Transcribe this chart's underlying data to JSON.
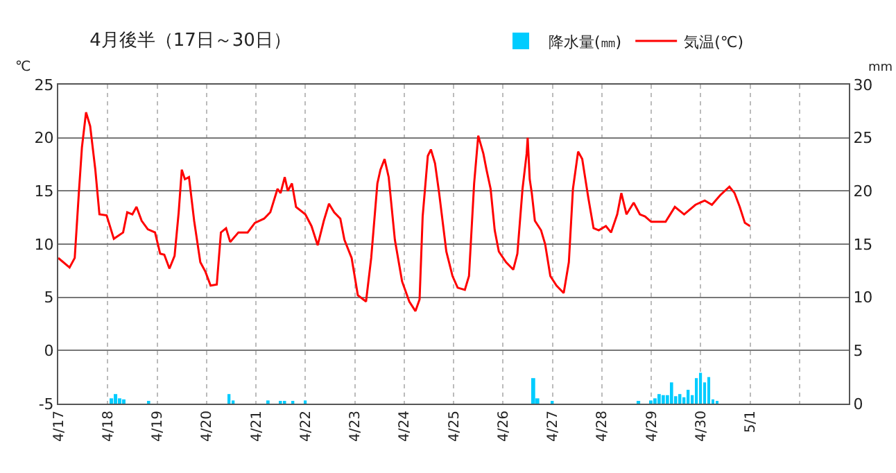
{
  "chart_data": {
    "type": "line",
    "title": "4月後半（17日～30日）",
    "ylabel": "℃",
    "y2label": "mm",
    "xlim": [
      "--04-17",
      "--05-03"
    ],
    "xticks": [
      {
        "value": "--04-17",
        "label": "4/17"
      },
      {
        "value": "--04-18",
        "label": "4/18"
      },
      {
        "value": "--04-19",
        "label": "4/19"
      },
      {
        "value": "--04-20",
        "label": "4/20"
      },
      {
        "value": "--04-21",
        "label": "4/21"
      },
      {
        "value": "--04-22",
        "label": "4/22"
      },
      {
        "value": "--04-23",
        "label": "4/23"
      },
      {
        "value": "--04-24",
        "label": "4/24"
      },
      {
        "value": "--04-25",
        "label": "4/25"
      },
      {
        "value": "--04-26",
        "label": "4/26"
      },
      {
        "value": "--04-27",
        "label": "4/27"
      },
      {
        "value": "--04-28",
        "label": "4/28"
      },
      {
        "value": "--04-29",
        "label": "4/29"
      },
      {
        "value": "--04-30",
        "label": "4/30"
      },
      {
        "value": "--05-01",
        "label": "5/1"
      },
      {
        "value": "--05-02",
        "label": null
      }
    ],
    "ylim": [
      -5,
      25
    ],
    "yticks": [
      -5,
      0,
      5,
      10,
      15,
      20,
      25
    ],
    "y2lim": [
      0,
      30
    ],
    "y2ticks": [
      0,
      5,
      10,
      15,
      20,
      25,
      30
    ],
    "grid": true,
    "legend": "top",
    "series": [
      {
        "name": "降水量(㎜)",
        "type": "bar",
        "axis": "y2",
        "color": "#00ccff",
        "x": [
          "--04-18T02:00",
          "--04-18T04:00",
          "--04-18T06:00",
          "--04-18T08:00",
          "--04-18T20:00",
          "--04-20T11:00",
          "--04-20T13:00",
          "--04-21T06:00",
          "--04-21T12:00",
          "--04-21T14:00",
          "--04-21T18:00",
          "--04-22T00:00",
          "--04-26T15:00",
          "--04-26T17:00",
          "--04-27T00:00",
          "--04-28T18:00",
          "--04-29T00:00",
          "--04-29T02:00",
          "--04-29T04:00",
          "--04-29T06:00",
          "--04-29T08:00",
          "--04-29T10:00",
          "--04-29T12:00",
          "--04-29T14:00",
          "--04-29T16:00",
          "--04-29T18:00",
          "--04-29T20:00",
          "--04-29T22:00",
          "--04-30T00:00",
          "--04-30T02:00",
          "--04-30T04:00",
          "--04-30T06:00",
          "--04-30T08:00"
        ],
        "values": [
          0.5,
          0.9,
          0.5,
          0.4,
          0.2,
          0.9,
          0.3,
          0.3,
          0.2,
          0.2,
          0.2,
          0.3,
          2.4,
          0.5,
          0.2,
          0.2,
          0.3,
          0.5,
          0.9,
          0.8,
          0.8,
          2.0,
          0.7,
          0.9,
          0.6,
          1.3,
          0.8,
          2.4,
          2.9,
          2.0,
          2.5,
          0.4,
          0.2
        ]
      },
      {
        "name": "気温(℃)",
        "color": "#ff0000",
        "x": [
          "--04-17T00:00",
          "--04-17T05:30",
          "--04-17T08:00",
          "--04-17T10:00",
          "--04-17T11:30",
          "--04-17T13:30",
          "--04-17T15:30",
          "--04-17T18:00",
          "--04-17T20:00",
          "--04-17T23:30",
          "--04-18T03:00",
          "--04-18T07:30",
          "--04-18T09:30",
          "--04-18T12:00",
          "--04-18T14:00",
          "--04-18T16:30",
          "--04-18T19:30",
          "--04-18T23:00",
          "--04-19T01:30",
          "--04-19T03:30",
          "--04-19T06:00",
          "--04-19T08:30",
          "--04-19T10:30",
          "--04-19T12:00",
          "--04-19T13:30",
          "--04-19T15:30",
          "--04-19T18:00",
          "--04-19T21:00",
          "--04-19T23:30",
          "--04-20T02:00",
          "--04-20T05:00",
          "--04-20T07:00",
          "--04-20T09:30",
          "--04-20T11:30",
          "--04-20T15:30",
          "--04-20T20:00",
          "--04-20T23:30",
          "--04-21T04:00",
          "--04-21T07:00",
          "--04-21T10:30",
          "--04-21T12:00",
          "--04-21T14:00",
          "--04-21T15:30",
          "--04-21T17:30",
          "--04-21T19:30",
          "--04-22T00:00",
          "--04-22T03:00",
          "--04-22T06:00",
          "--04-22T09:00",
          "--04-22T11:30",
          "--04-22T14:00",
          "--04-22T17:00",
          "--04-22T19:00",
          "--04-22T22:30",
          "--04-23T01:30",
          "--04-23T05:30",
          "--04-23T08:00",
          "--04-23T11:00",
          "--04-23T12:30",
          "--04-23T14:30",
          "--04-23T16:30",
          "--04-23T19:30",
          "--04-23T23:00",
          "--04-24T02:30",
          "--04-24T05:30",
          "--04-24T07:30",
          "--04-24T09:00",
          "--04-24T11:30",
          "--04-24T13:00",
          "--04-24T15:00",
          "--04-24T17:00",
          "--04-24T20:30",
          "--04-24T23:30",
          "--04-25T02:00",
          "--04-25T05:30",
          "--04-25T07:30",
          "--04-25T10:00",
          "--04-25T12:00",
          "--04-25T14:30",
          "--04-25T16:00",
          "--04-25T18:00",
          "--04-25T20:00",
          "--04-25T22:00",
          "--04-26T01:30",
          "--04-26T05:00",
          "--04-26T07:00",
          "--04-26T09:30",
          "--04-26T11:30",
          "--04-26T12:00",
          "--04-26T13:00",
          "--04-26T14:00",
          "--04-26T15:30",
          "--04-26T18:30",
          "--04-26T20:30",
          "--04-26T23:00",
          "--04-27T02:00",
          "--04-27T05:30",
          "--04-27T08:00",
          "--04-27T10:00",
          "--04-27T12:30",
          "--04-27T14:30",
          "--04-27T17:30",
          "--04-27T20:00",
          "--04-27T22:30",
          "--04-28T02:00",
          "--04-28T04:30",
          "--04-28T07:30",
          "--04-28T09:30",
          "--04-28T12:00",
          "--04-28T15:30",
          "--04-28T18:30",
          "--04-28T21:00",
          "--04-29T00:00",
          "--04-29T07:00",
          "--04-29T11:30",
          "--04-29T16:00",
          "--04-29T21:30",
          "--04-30T02:00",
          "--04-30T05:30",
          "--04-30T09:30",
          "--04-30T14:00",
          "--04-30T16:30",
          "--04-30T19:00",
          "--04-30T21:30",
          "--05-01T00:00"
        ],
        "values": [
          8.7,
          7.8,
          8.7,
          14.8,
          19.1,
          22.4,
          21.1,
          17.0,
          12.8,
          12.7,
          10.5,
          11.1,
          13.0,
          12.8,
          13.5,
          12.2,
          11.4,
          11.1,
          9.1,
          9.0,
          7.7,
          8.9,
          13.0,
          17.0,
          16.1,
          16.3,
          12.2,
          8.3,
          7.4,
          6.1,
          6.2,
          11.1,
          11.5,
          10.2,
          11.1,
          11.1,
          12.0,
          12.4,
          13.0,
          15.2,
          14.8,
          16.3,
          15.0,
          15.7,
          13.5,
          12.8,
          11.7,
          9.9,
          12.2,
          13.8,
          13.0,
          12.4,
          10.4,
          8.7,
          5.2,
          4.6,
          8.7,
          15.7,
          17.0,
          18.0,
          16.3,
          10.4,
          6.5,
          4.6,
          3.7,
          4.8,
          12.6,
          18.3,
          18.9,
          17.6,
          14.8,
          9.3,
          7.0,
          5.9,
          5.7,
          7.0,
          15.7,
          20.2,
          18.5,
          17.0,
          15.2,
          11.3,
          9.3,
          8.3,
          7.6,
          9.1,
          15.2,
          18.5,
          20.0,
          16.1,
          14.8,
          12.2,
          11.3,
          10.0,
          7.0,
          6.1,
          5.4,
          8.3,
          15.2,
          18.7,
          18.0,
          14.3,
          11.5,
          11.3,
          11.7,
          11.1,
          12.8,
          14.8,
          12.8,
          13.9,
          12.8,
          12.6,
          12.1,
          12.1,
          13.5,
          12.8,
          13.7,
          14.1,
          13.7,
          14.6,
          15.4,
          14.8,
          13.5,
          12.0,
          11.7
        ]
      }
    ]
  }
}
